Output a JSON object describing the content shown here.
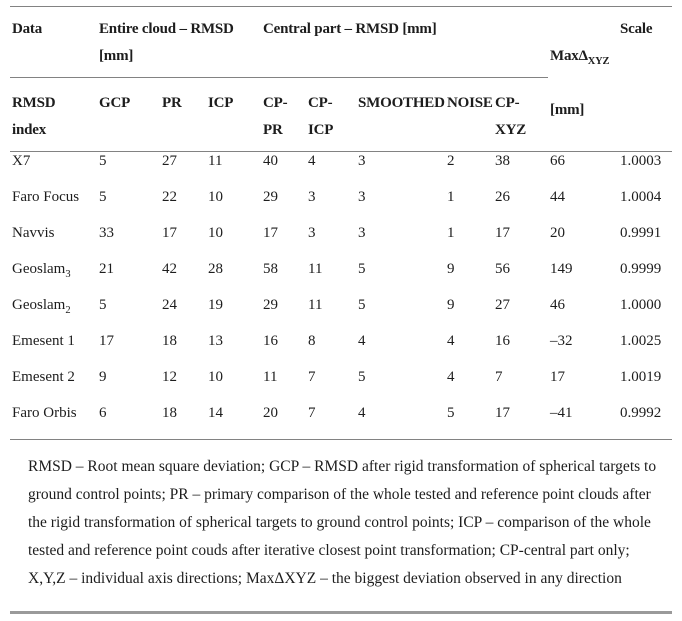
{
  "colors": {
    "text": "#1d1d1d",
    "thin_rule": "#828282",
    "thick_rule": "#9a9a9a",
    "background": "#ffffff"
  },
  "table": {
    "group_headers": {
      "data": "Data",
      "entire_cloud": "Entire cloud – RMSD\n[mm]",
      "central_part": "Central part – RMSD [mm]",
      "max_delta_prefix": "MaxΔ",
      "max_delta_sub": "XYZ",
      "max_delta_unit": "[mm]",
      "scale": "Scale"
    },
    "sub_headers": {
      "rmsd_index": "RMSD\nindex",
      "cols": [
        "GCP",
        "PR",
        "ICP",
        "CP-\nPR",
        "CP-\nICP",
        "SMOOTHED",
        "NOISE",
        "CP-\nXYZ"
      ]
    },
    "rows": [
      {
        "label": "X7",
        "label_sub": "",
        "values": [
          "5",
          "27",
          "11",
          "40",
          "4",
          "3",
          "2",
          "38",
          "66",
          "1.0003"
        ]
      },
      {
        "label": "Faro Focus",
        "label_sub": "",
        "values": [
          "5",
          "22",
          "10",
          "29",
          "3",
          "3",
          "1",
          "26",
          "44",
          "1.0004"
        ]
      },
      {
        "label": "Navvis",
        "label_sub": "",
        "values": [
          "33",
          "17",
          "10",
          "17",
          "3",
          "3",
          "1",
          "17",
          "20",
          "0.9991"
        ]
      },
      {
        "label": "Geoslam",
        "label_sub": "3",
        "values": [
          "21",
          "42",
          "28",
          "58",
          "11",
          "5",
          "9",
          "56",
          "149",
          "0.9999"
        ]
      },
      {
        "label": "Geoslam",
        "label_sub": "2",
        "values": [
          "5",
          "24",
          "19",
          "29",
          "11",
          "5",
          "9",
          "27",
          "46",
          "1.0000"
        ]
      },
      {
        "label": "Emesent 1",
        "label_sub": "",
        "values": [
          "17",
          "18",
          "13",
          "16",
          "8",
          "4",
          "4",
          "16",
          "–32",
          "1.0025"
        ]
      },
      {
        "label": "Emesent 2",
        "label_sub": "",
        "values": [
          "9",
          "12",
          "10",
          "11",
          "7",
          "5",
          "4",
          "7",
          "17",
          "1.0019"
        ]
      },
      {
        "label": "Faro Orbis",
        "label_sub": "",
        "values": [
          "6",
          "18",
          "14",
          "20",
          "7",
          "4",
          "5",
          "17",
          "–41",
          "0.9992"
        ]
      }
    ],
    "footnote": "RMSD – Root mean square deviation; GCP – RMSD after rigid transformation of spherical targets to ground control points; PR – primary comparison of the whole tested and reference point clouds after the rigid transformation of spherical targets to ground control points; ICP – comparison of the whole tested and reference point couds after iterative closest point transformation; CP-central part only; X,Y,Z – individual axis directions; MaxΔXYZ – the biggest deviation observed in any direction"
  }
}
